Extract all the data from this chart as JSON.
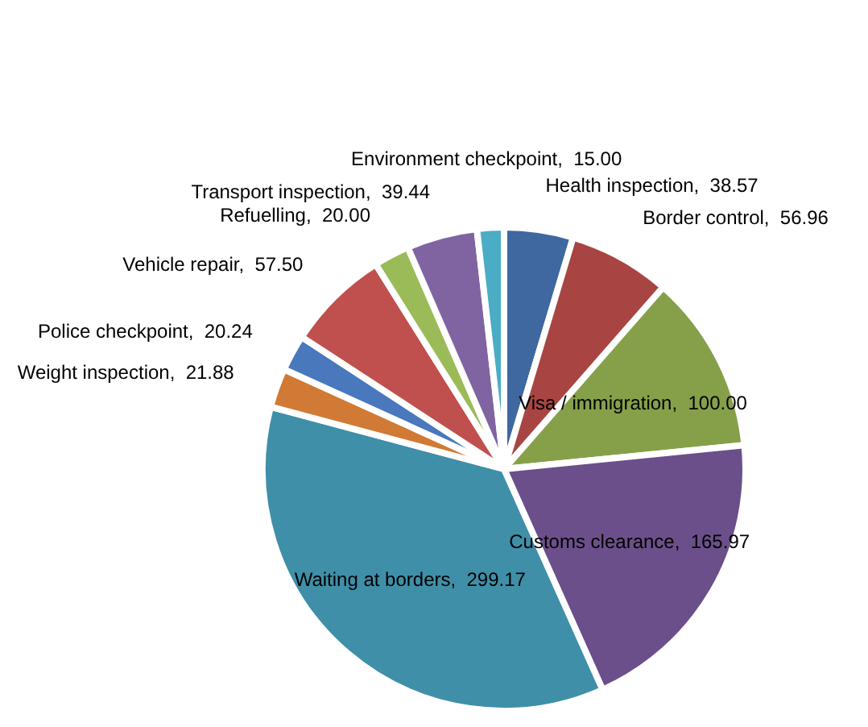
{
  "chart_data": {
    "type": "pie",
    "categories": [
      "Health inspection",
      "Border control",
      "Visa / immigration",
      "Customs clearance",
      "Waiting at borders",
      "Weight inspection",
      "Police checkpoint",
      "Vehicle repair",
      "Refuelling",
      "Transport inspection",
      "Environment checkpoint"
    ],
    "values": [
      38.57,
      56.96,
      100.0,
      165.97,
      299.17,
      21.88,
      20.24,
      57.5,
      20.0,
      39.44,
      15.0
    ],
    "value_labels": [
      "38.57",
      "56.96",
      "100.00",
      "165.97",
      "299.17",
      "21.88",
      "20.24",
      "57.50",
      "20.00",
      "39.44",
      "15.00"
    ],
    "colors": [
      "#3f67a0",
      "#a84542",
      "#86a04a",
      "#6b4f8a",
      "#3f8fa8",
      "#d17a35",
      "#4a78bc",
      "#c0504d",
      "#9bbb59",
      "#8064a2",
      "#4bacc6"
    ],
    "legend": false
  }
}
